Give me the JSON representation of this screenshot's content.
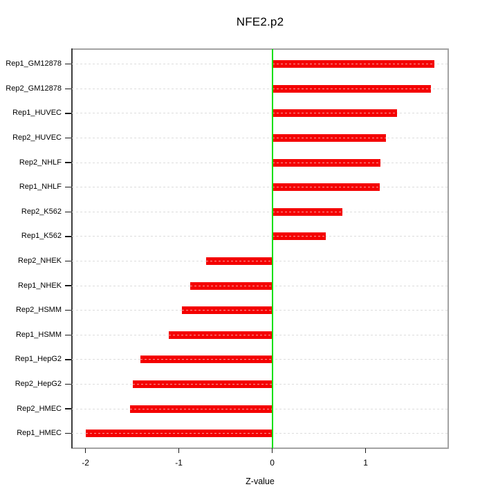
{
  "chart_data": {
    "type": "bar",
    "orientation": "horizontal",
    "title": "NFE2.p2",
    "xlabel": "Z-value",
    "ylabel": "",
    "categories": [
      "Rep1_GM12878",
      "Rep2_GM12878",
      "Rep1_HUVEC",
      "Rep2_HUVEC",
      "Rep2_NHLF",
      "Rep1_NHLF",
      "Rep2_K562",
      "Rep1_K562",
      "Rep2_NHEK",
      "Rep1_NHEK",
      "Rep2_HSMM",
      "Rep1_HSMM",
      "Rep1_HepG2",
      "Rep2_HepG2",
      "Rep2_HMEC",
      "Rep1_HMEC"
    ],
    "values": [
      1.74,
      1.7,
      1.34,
      1.22,
      1.16,
      1.15,
      0.75,
      0.57,
      -0.71,
      -0.88,
      -0.97,
      -1.11,
      -1.41,
      -1.49,
      -1.52,
      -2.0
    ],
    "xlim": [
      -2.145,
      1.881
    ],
    "xticks": [
      -2,
      -1,
      0,
      1
    ],
    "xtick_labels": [
      "-2",
      "-1",
      "0",
      "1"
    ],
    "grid": "dashed horizontal line at each category, full plot width",
    "zero_line_at": 0,
    "legend": "none",
    "colors": {
      "bar": "#f40000",
      "bar_grid_dash": "rgba(255,255,255,0.62)",
      "zero_line": "#00e000",
      "grid": "#dcdcdc",
      "box": "#a3a3a3",
      "left_spine": "#3c3c3c",
      "tick": "#1a1a1a",
      "text": "#000000",
      "background": "#ffffff"
    }
  }
}
